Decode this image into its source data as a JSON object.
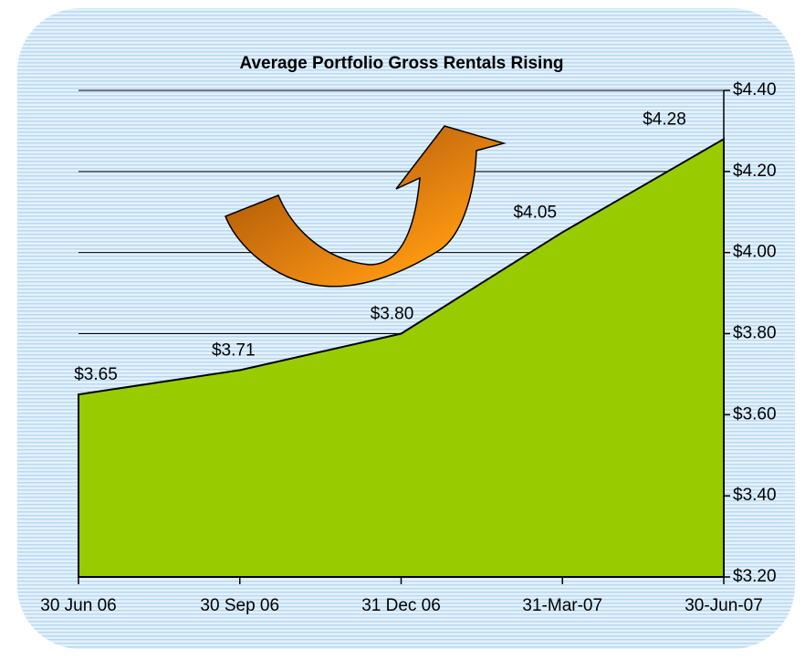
{
  "chart_data": {
    "type": "area",
    "title": "Average Portfolio Gross Rentals Rising",
    "categories": [
      "30 Jun 06",
      "30 Sep 06",
      "31 Dec 06",
      "31-Mar-07",
      "30-Jun-07"
    ],
    "values": [
      3.65,
      3.71,
      3.8,
      4.05,
      4.28
    ],
    "value_labels": [
      "$3.65",
      "$3.71",
      "$3.80",
      "$4.05",
      "$4.28"
    ],
    "color": "#99cc00",
    "ylim": [
      3.2,
      4.4
    ],
    "yticks": [
      {
        "value": 3.2,
        "label": "$3.20"
      },
      {
        "value": 3.4,
        "label": "$3.40"
      },
      {
        "value": 3.6,
        "label": "$3.60"
      },
      {
        "value": 3.8,
        "label": "$3.80"
      },
      {
        "value": 4.0,
        "label": "$4.00"
      },
      {
        "value": 4.2,
        "label": "$4.20"
      },
      {
        "value": 4.4,
        "label": "$4.40"
      }
    ],
    "grid": true,
    "y_axis_side": "right"
  }
}
